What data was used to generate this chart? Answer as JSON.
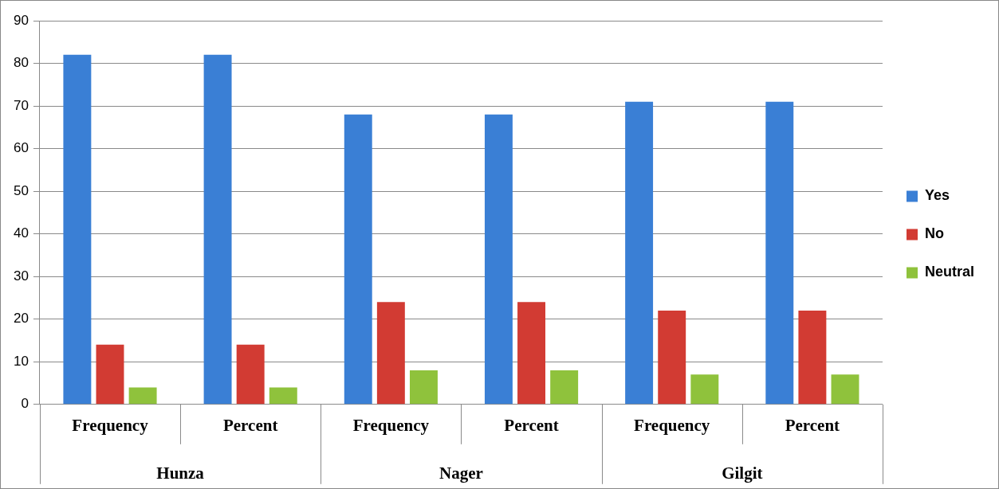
{
  "chart_data": {
    "type": "bar",
    "categories": [
      "Frequency",
      "Percent",
      "Frequency",
      "Percent",
      "Frequency",
      "Percent"
    ],
    "series": [
      {
        "name": "Yes",
        "color": "#3a7fd5",
        "values": [
          82,
          82,
          68,
          68,
          71,
          71
        ]
      },
      {
        "name": "No",
        "color": "#d23b33",
        "values": [
          14,
          14,
          24,
          24,
          22,
          22
        ]
      },
      {
        "name": "Neutral",
        "color": "#8fc23c",
        "values": [
          4,
          4,
          8,
          8,
          7,
          7
        ]
      }
    ],
    "annotations": [
      "Hunza",
      "Nager",
      "Gilgit"
    ],
    "ylim": [
      0,
      90
    ],
    "yticks": [
      0,
      10,
      20,
      30,
      40,
      50,
      60,
      70,
      80,
      90
    ],
    "grid": "y",
    "legend": "right"
  }
}
